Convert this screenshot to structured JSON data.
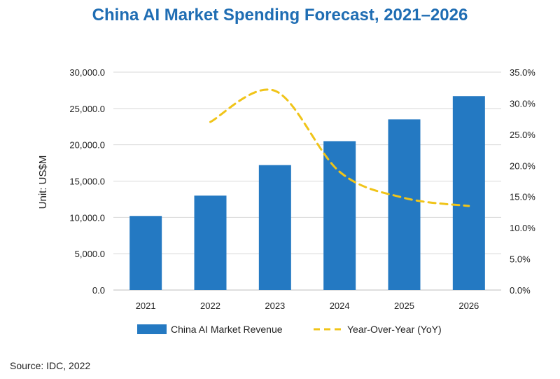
{
  "chart_data": {
    "type": "bar",
    "title": "China AI Market Spending Forecast, 2021–2026",
    "categories": [
      "2021",
      "2022",
      "2023",
      "2024",
      "2025",
      "2026"
    ],
    "ylabel": "Unit: US$M",
    "ylim": [
      0,
      30000
    ],
    "y_ticks": [
      "0.0",
      "5,000.0",
      "10,000.0",
      "15,000.0",
      "20,000.0",
      "25,000.0",
      "30,000.0"
    ],
    "y2lim": [
      0,
      35
    ],
    "y2_ticks": [
      "0.0%",
      "5.0%",
      "10.0%",
      "15.0%",
      "20.0%",
      "25.0%",
      "30.0%",
      "35.0%"
    ],
    "series": [
      {
        "name": "China AI Market Revenue",
        "type": "bar",
        "color": "#2479c2",
        "values": [
          10200,
          13000,
          17200,
          20500,
          23500,
          26700
        ]
      },
      {
        "name": "Year-Over-Year (YoY)",
        "type": "line",
        "style": "dashed",
        "axis": "secondary",
        "color": "#f0c419",
        "values": [
          null,
          27.0,
          32.0,
          19.0,
          14.8,
          13.5
        ]
      }
    ],
    "grid": true,
    "legend_position": "bottom"
  },
  "source": "Source: IDC, 2022"
}
